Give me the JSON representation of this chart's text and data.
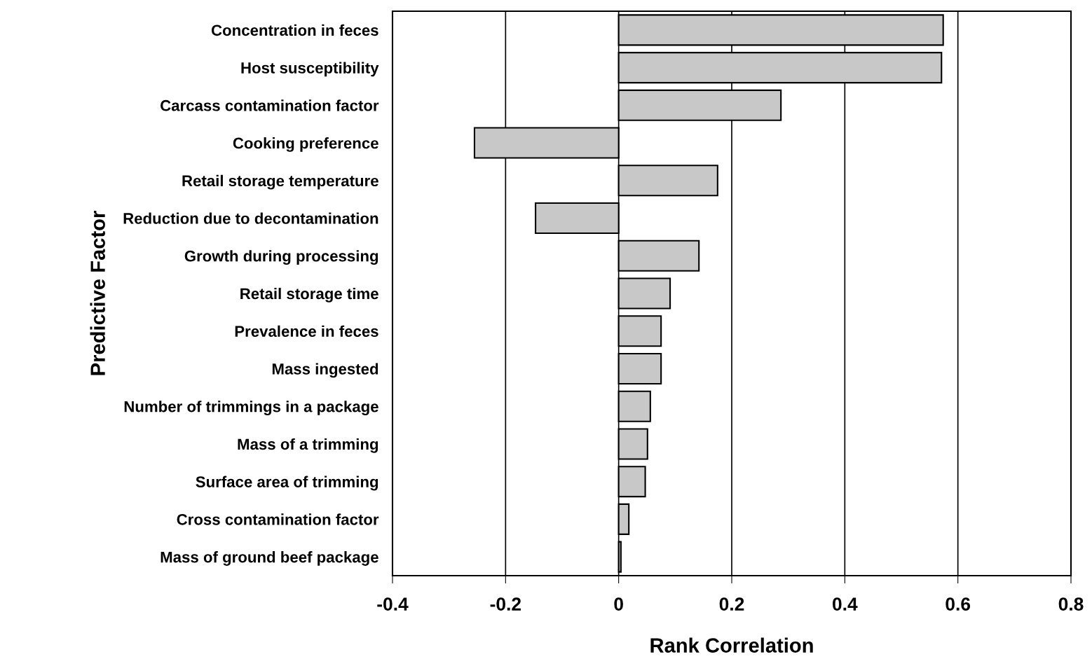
{
  "chart_data": {
    "type": "bar",
    "orientation": "horizontal",
    "xlabel": "Rank Correlation",
    "ylabel": "Predictive Factor",
    "categories": [
      "Concentration in feces",
      "Host susceptibility",
      "Carcass contamination factor",
      "Cooking preference",
      "Retail storage temperature",
      "Reduction due to decontamination",
      "Growth during processing",
      "Retail storage time",
      "Prevalence in feces",
      "Mass ingested",
      "Number of trimmings in a package",
      "Mass of a trimming",
      "Surface area of trimming",
      "Cross contamination factor",
      "Mass of ground beef package"
    ],
    "values": [
      0.574,
      0.571,
      0.287,
      -0.255,
      0.175,
      -0.147,
      0.142,
      0.091,
      0.075,
      0.075,
      0.056,
      0.051,
      0.047,
      0.018,
      0.004
    ],
    "color": "#c8c8c8",
    "xlim": [
      -0.4,
      0.8
    ],
    "xticks": [
      {
        "value": -0.4,
        "label": "-0.4"
      },
      {
        "value": -0.2,
        "label": "-0.2"
      },
      0,
      0.2,
      0.4,
      0.6,
      0.8
    ],
    "grid": "x"
  }
}
